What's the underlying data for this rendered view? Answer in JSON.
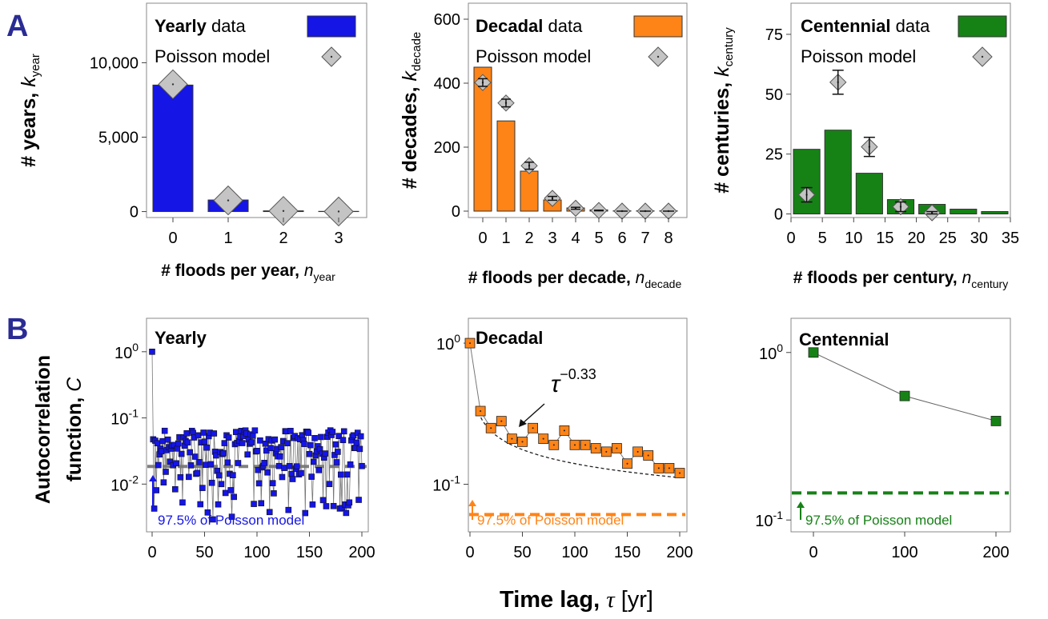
{
  "panel_labels": {
    "a": "A",
    "b": "B"
  },
  "colors": {
    "yearly": "#1515e6",
    "decadal": "#ff8417",
    "centennial": "#168216",
    "poisson": "#c4c4c4",
    "dash_yearly": "#7f7f7f"
  },
  "poisson_label": "Poisson model",
  "data_word": "data",
  "xlabel_b": {
    "main": "Time lag,",
    "sym": "τ",
    "unit": "[yr]"
  },
  "ylabel_b": {
    "line1": "Autocorrelation",
    "line2": "function,",
    "sym": "C"
  },
  "threshold_label": "97.5% of  Poisson model",
  "threshold_label_b": "97.5% of Poisson model",
  "power_law": {
    "base": "τ",
    "exp": "−0.33"
  },
  "chart_data": [
    {
      "id": "A-yearly",
      "type": "bar",
      "legend": {
        "bold": "Yearly",
        "rest": "data"
      },
      "ylabel": {
        "main": "# years,",
        "k": "k",
        "sub": "year"
      },
      "xlabel": {
        "main": "# floods per year,",
        "n": "n",
        "sub": "year"
      },
      "x": [
        0,
        1,
        2,
        3
      ],
      "values": [
        8500,
        780,
        50,
        15
      ],
      "poisson": [
        8550,
        750,
        40,
        5
      ],
      "xticks": [
        "0",
        "1",
        "2",
        "3"
      ],
      "yticks": [
        "0",
        "5,000",
        "10,000"
      ],
      "ytick_values": [
        0,
        5000,
        10000
      ],
      "ylim": [
        -400,
        14000
      ]
    },
    {
      "id": "A-decadal",
      "type": "bar",
      "legend": {
        "bold": "Decadal",
        "rest": "data"
      },
      "ylabel": {
        "main": "# decades,",
        "k": "k",
        "sub": "decade"
      },
      "xlabel": {
        "main": "# floods per decade,",
        "n": "n",
        "sub": "decade"
      },
      "x": [
        0,
        1,
        2,
        3,
        4,
        5,
        6,
        7,
        8
      ],
      "values": [
        450,
        282,
        125,
        35,
        10,
        4,
        1,
        1,
        1
      ],
      "poisson": [
        402,
        338,
        142,
        40,
        9,
        2,
        0,
        0,
        0
      ],
      "poisson_err": [
        12,
        12,
        11,
        6,
        3,
        1,
        0,
        0,
        0
      ],
      "xticks": [
        "0",
        "1",
        "2",
        "3",
        "4",
        "5",
        "6",
        "7",
        "8"
      ],
      "yticks": [
        "0",
        "200",
        "400",
        "600"
      ],
      "ytick_values": [
        0,
        200,
        400,
        600
      ],
      "ylim": [
        -20,
        650
      ]
    },
    {
      "id": "A-centennial",
      "type": "bar",
      "legend": {
        "bold": "Centennial",
        "rest": "data"
      },
      "ylabel": {
        "main": "# centuries,",
        "k": "k",
        "sub": "century"
      },
      "xlabel": {
        "main": "# floods per century,",
        "n": "n",
        "sub": "century"
      },
      "bins": [
        [
          0,
          5
        ],
        [
          5,
          10
        ],
        [
          10,
          15
        ],
        [
          15,
          20
        ],
        [
          20,
          25
        ],
        [
          25,
          30
        ],
        [
          30,
          35
        ]
      ],
      "values": [
        27,
        35,
        17,
        6,
        4,
        2,
        1
      ],
      "poisson_x": [
        2.5,
        7.5,
        12.5,
        17.5,
        22.5
      ],
      "poisson": [
        8,
        55,
        28,
        3,
        0.5
      ],
      "poisson_err": [
        3,
        5,
        4,
        2,
        0.5
      ],
      "xticks": [
        "0",
        "5",
        "10",
        "15",
        "20",
        "25",
        "30",
        "35"
      ],
      "yticks": [
        "0",
        "25",
        "50",
        "75"
      ],
      "ytick_values": [
        0,
        25,
        50,
        75
      ],
      "ylim": [
        -1.5,
        88
      ]
    },
    {
      "id": "B-yearly",
      "type": "scatter",
      "scale": "log",
      "title": "Yearly",
      "xlim": [
        -5,
        205
      ],
      "xticks": [
        "0",
        "50",
        "100",
        "150",
        "200"
      ],
      "xtick_values": [
        0,
        50,
        100,
        150,
        200
      ],
      "ylim": [
        0.0019,
        3.2
      ],
      "yticks": [
        {
          "base": "10",
          "exp": "0",
          "value": 1
        },
        {
          "base": "10",
          "exp": "-1",
          "value": 0.1
        },
        {
          "base": "10",
          "exp": "-2",
          "value": 0.01
        }
      ],
      "threshold": 0.0185,
      "points_first": [
        [
          0,
          1.0
        ]
      ],
      "point_range": [
        1,
        200
      ],
      "value_range": [
        0.0025,
        0.065
      ]
    },
    {
      "id": "B-decadal",
      "type": "scatter",
      "scale": "log",
      "title": "Decadal",
      "xlim": [
        -5,
        205
      ],
      "xticks": [
        "0",
        "50",
        "100",
        "150",
        "200"
      ],
      "xtick_values": [
        0,
        50,
        100,
        150,
        200
      ],
      "ylim": [
        0.046,
        1.5
      ],
      "yticks": [
        {
          "base": "10",
          "exp": "0",
          "value": 1
        },
        {
          "base": "10",
          "exp": "-1",
          "value": 0.1
        }
      ],
      "threshold": 0.061,
      "x": [
        0,
        10,
        20,
        30,
        40,
        50,
        60,
        70,
        80,
        90,
        100,
        110,
        120,
        130,
        140,
        150,
        160,
        170,
        180,
        190,
        200
      ],
      "values": [
        1.0,
        0.33,
        0.25,
        0.28,
        0.21,
        0.2,
        0.25,
        0.21,
        0.19,
        0.24,
        0.19,
        0.19,
        0.18,
        0.17,
        0.18,
        0.14,
        0.17,
        0.16,
        0.13,
        0.13,
        0.12
      ]
    },
    {
      "id": "B-centennial",
      "type": "line",
      "scale": "log",
      "title": "Centennial",
      "xlim": [
        -20,
        225
      ],
      "xticks": [
        "0",
        "100",
        "200"
      ],
      "xtick_values": [
        0,
        100,
        200
      ],
      "ylim": [
        0.085,
        1.6
      ],
      "yticks": [
        {
          "base": "10",
          "exp": "0",
          "value": 1
        },
        {
          "base": "10",
          "exp": "-1",
          "value": 0.1
        }
      ],
      "threshold": 0.145,
      "x": [
        0,
        100,
        200
      ],
      "values": [
        1.0,
        0.55,
        0.39
      ]
    }
  ]
}
